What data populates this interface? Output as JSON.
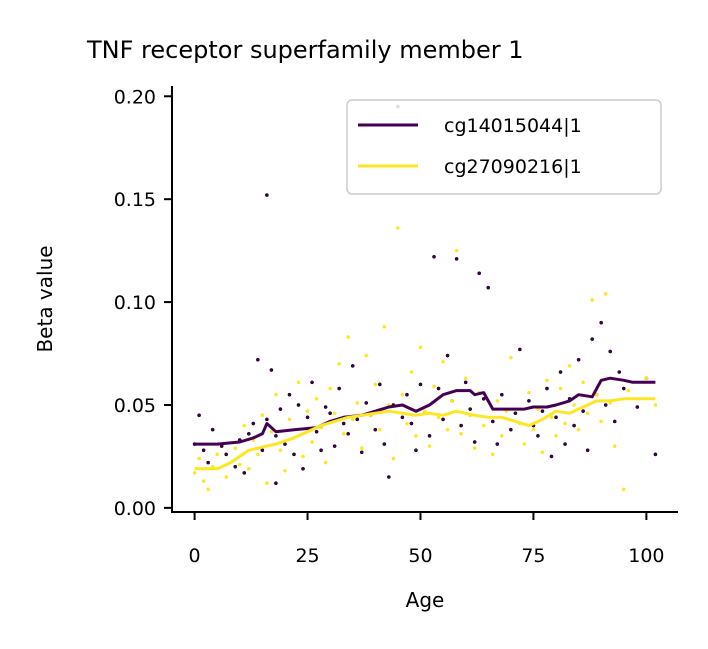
{
  "chart_data": {
    "type": "scatter",
    "title": "TNF receptor superfamily member 1",
    "xlabel": "Age",
    "ylabel": "Beta value",
    "xlim": [
      -5,
      107
    ],
    "ylim": [
      -0.002,
      0.205
    ],
    "xticks": [
      0,
      25,
      50,
      75,
      100
    ],
    "xtick_labels": [
      "0",
      "25",
      "50",
      "75",
      "100"
    ],
    "yticks": [
      0.0,
      0.05,
      0.1,
      0.15,
      0.2
    ],
    "ytick_labels": [
      "0.00",
      "0.05",
      "0.10",
      "0.15",
      "0.20"
    ],
    "grid": false,
    "legend_position": "top-right",
    "series": [
      {
        "name": "cg14015044|1",
        "color": "#440154",
        "trend": [
          [
            0,
            0.031
          ],
          [
            5,
            0.031
          ],
          [
            10,
            0.032
          ],
          [
            13,
            0.034
          ],
          [
            15,
            0.036
          ],
          [
            16,
            0.041
          ],
          [
            18,
            0.037
          ],
          [
            22,
            0.038
          ],
          [
            27,
            0.039
          ],
          [
            30,
            0.042
          ],
          [
            33,
            0.044
          ],
          [
            37,
            0.045
          ],
          [
            40,
            0.047
          ],
          [
            43,
            0.049
          ],
          [
            46,
            0.05
          ],
          [
            49,
            0.047
          ],
          [
            52,
            0.05
          ],
          [
            55,
            0.055
          ],
          [
            58,
            0.057
          ],
          [
            61,
            0.057
          ],
          [
            62,
            0.055
          ],
          [
            64,
            0.056
          ],
          [
            66,
            0.048
          ],
          [
            70,
            0.048
          ],
          [
            73,
            0.048
          ],
          [
            75,
            0.049
          ],
          [
            78,
            0.049
          ],
          [
            80,
            0.05
          ],
          [
            83,
            0.052
          ],
          [
            85,
            0.055
          ],
          [
            88,
            0.054
          ],
          [
            90,
            0.062
          ],
          [
            92,
            0.063
          ],
          [
            95,
            0.062
          ],
          [
            97,
            0.061
          ],
          [
            102,
            0.061
          ]
        ],
        "points": [
          [
            0,
            0.031
          ],
          [
            1,
            0.045
          ],
          [
            2,
            0.028
          ],
          [
            3,
            0.022
          ],
          [
            4,
            0.038
          ],
          [
            6,
            0.03
          ],
          [
            7,
            0.026
          ],
          [
            9,
            0.02
          ],
          [
            10,
            0.033
          ],
          [
            11,
            0.017
          ],
          [
            12,
            0.036
          ],
          [
            13,
            0.041
          ],
          [
            14,
            0.072
          ],
          [
            15,
            0.028
          ],
          [
            16,
            0.152
          ],
          [
            16,
            0.043
          ],
          [
            17,
            0.067
          ],
          [
            18,
            0.035
          ],
          [
            18,
            0.012
          ],
          [
            19,
            0.048
          ],
          [
            20,
            0.031
          ],
          [
            21,
            0.055
          ],
          [
            22,
            0.026
          ],
          [
            23,
            0.05
          ],
          [
            24,
            0.019
          ],
          [
            25,
            0.044
          ],
          [
            26,
            0.061
          ],
          [
            27,
            0.037
          ],
          [
            28,
            0.028
          ],
          [
            29,
            0.049
          ],
          [
            30,
            0.046
          ],
          [
            31,
            0.03
          ],
          [
            32,
            0.058
          ],
          [
            33,
            0.041
          ],
          [
            34,
            0.036
          ],
          [
            35,
            0.069
          ],
          [
            36,
            0.043
          ],
          [
            37,
            0.027
          ],
          [
            38,
            0.051
          ],
          [
            39,
            0.045
          ],
          [
            40,
            0.038
          ],
          [
            41,
            0.06
          ],
          [
            42,
            0.031
          ],
          [
            43,
            0.015
          ],
          [
            44,
            0.05
          ],
          [
            45,
            0.195
          ],
          [
            46,
            0.044
          ],
          [
            47,
            0.055
          ],
          [
            48,
            0.041
          ],
          [
            49,
            0.028
          ],
          [
            50,
            0.06
          ],
          [
            51,
            0.046
          ],
          [
            52,
            0.035
          ],
          [
            53,
            0.122
          ],
          [
            54,
            0.058
          ],
          [
            55,
            0.043
          ],
          [
            56,
            0.074
          ],
          [
            57,
            0.052
          ],
          [
            58,
            0.121
          ],
          [
            59,
            0.04
          ],
          [
            60,
            0.061
          ],
          [
            61,
            0.048
          ],
          [
            62,
            0.032
          ],
          [
            63,
            0.114
          ],
          [
            64,
            0.053
          ],
          [
            65,
            0.107
          ],
          [
            66,
            0.042
          ],
          [
            67,
            0.031
          ],
          [
            68,
            0.055
          ],
          [
            70,
            0.038
          ],
          [
            71,
            0.046
          ],
          [
            72,
            0.077
          ],
          [
            74,
            0.052
          ],
          [
            75,
            0.04
          ],
          [
            76,
            0.035
          ],
          [
            77,
            0.047
          ],
          [
            78,
            0.058
          ],
          [
            79,
            0.025
          ],
          [
            80,
            0.044
          ],
          [
            81,
            0.066
          ],
          [
            82,
            0.031
          ],
          [
            83,
            0.053
          ],
          [
            84,
            0.04
          ],
          [
            85,
            0.072
          ],
          [
            86,
            0.047
          ],
          [
            87,
            0.028
          ],
          [
            88,
            0.082
          ],
          [
            89,
            0.055
          ],
          [
            90,
            0.09
          ],
          [
            91,
            0.05
          ],
          [
            92,
            0.076
          ],
          [
            93,
            0.042
          ],
          [
            94,
            0.066
          ],
          [
            95,
            0.058
          ],
          [
            98,
            0.049
          ],
          [
            100,
            0.063
          ],
          [
            102,
            0.026
          ]
        ]
      },
      {
        "name": "cg27090216|1",
        "color": "#fde725",
        "trend": [
          [
            0,
            0.019
          ],
          [
            5,
            0.019
          ],
          [
            8,
            0.022
          ],
          [
            12,
            0.028
          ],
          [
            16,
            0.03
          ],
          [
            18,
            0.031
          ],
          [
            22,
            0.034
          ],
          [
            25,
            0.037
          ],
          [
            28,
            0.04
          ],
          [
            31,
            0.042
          ],
          [
            34,
            0.044
          ],
          [
            37,
            0.045
          ],
          [
            40,
            0.046
          ],
          [
            43,
            0.047
          ],
          [
            46,
            0.046
          ],
          [
            49,
            0.045
          ],
          [
            52,
            0.046
          ],
          [
            55,
            0.045
          ],
          [
            58,
            0.047
          ],
          [
            62,
            0.045
          ],
          [
            65,
            0.044
          ],
          [
            68,
            0.044
          ],
          [
            71,
            0.042
          ],
          [
            74,
            0.04
          ],
          [
            77,
            0.043
          ],
          [
            80,
            0.047
          ],
          [
            83,
            0.046
          ],
          [
            86,
            0.049
          ],
          [
            89,
            0.052
          ],
          [
            92,
            0.052
          ],
          [
            95,
            0.053
          ],
          [
            98,
            0.053
          ],
          [
            102,
            0.053
          ]
        ],
        "points": [
          [
            0,
            0.017
          ],
          [
            1,
            0.024
          ],
          [
            2,
            0.013
          ],
          [
            3,
            0.009
          ],
          [
            4,
            0.02
          ],
          [
            5,
            0.026
          ],
          [
            7,
            0.015
          ],
          [
            9,
            0.029
          ],
          [
            10,
            0.021
          ],
          [
            11,
            0.04
          ],
          [
            12,
            0.019
          ],
          [
            13,
            0.033
          ],
          [
            14,
            0.026
          ],
          [
            15,
            0.045
          ],
          [
            16,
            0.012
          ],
          [
            17,
            0.037
          ],
          [
            18,
            0.055
          ],
          [
            19,
            0.028
          ],
          [
            20,
            0.018
          ],
          [
            21,
            0.043
          ],
          [
            22,
            0.034
          ],
          [
            23,
            0.061
          ],
          [
            24,
            0.025
          ],
          [
            25,
            0.047
          ],
          [
            26,
            0.032
          ],
          [
            27,
            0.053
          ],
          [
            28,
            0.039
          ],
          [
            29,
            0.022
          ],
          [
            30,
            0.058
          ],
          [
            31,
            0.046
          ],
          [
            32,
            0.07
          ],
          [
            33,
            0.036
          ],
          [
            34,
            0.083
          ],
          [
            35,
            0.043
          ],
          [
            36,
            0.051
          ],
          [
            37,
            0.029
          ],
          [
            38,
            0.074
          ],
          [
            39,
            0.045
          ],
          [
            40,
            0.06
          ],
          [
            41,
            0.038
          ],
          [
            42,
            0.088
          ],
          [
            43,
            0.05
          ],
          [
            44,
            0.024
          ],
          [
            45,
            0.136
          ],
          [
            46,
            0.055
          ],
          [
            47,
            0.041
          ],
          [
            48,
            0.066
          ],
          [
            49,
            0.035
          ],
          [
            50,
            0.078
          ],
          [
            51,
            0.047
          ],
          [
            52,
            0.03
          ],
          [
            53,
            0.059
          ],
          [
            54,
            0.044
          ],
          [
            55,
            0.071
          ],
          [
            56,
            0.038
          ],
          [
            57,
            0.052
          ],
          [
            58,
            0.125
          ],
          [
            59,
            0.036
          ],
          [
            60,
            0.063
          ],
          [
            61,
            0.045
          ],
          [
            62,
            0.029
          ],
          [
            63,
            0.056
          ],
          [
            64,
            0.04
          ],
          [
            66,
            0.026
          ],
          [
            67,
            0.052
          ],
          [
            68,
            0.035
          ],
          [
            69,
            0.047
          ],
          [
            70,
            0.073
          ],
          [
            72,
            0.041
          ],
          [
            73,
            0.031
          ],
          [
            74,
            0.056
          ],
          [
            75,
            0.038
          ],
          [
            76,
            0.048
          ],
          [
            77,
            0.027
          ],
          [
            78,
            0.062
          ],
          [
            79,
            0.044
          ],
          [
            80,
            0.035
          ],
          [
            81,
            0.058
          ],
          [
            82,
            0.041
          ],
          [
            83,
            0.069
          ],
          [
            84,
            0.05
          ],
          [
            85,
            0.038
          ],
          [
            86,
            0.061
          ],
          [
            87,
            0.046
          ],
          [
            88,
            0.101
          ],
          [
            89,
            0.055
          ],
          [
            90,
            0.042
          ],
          [
            91,
            0.104
          ],
          [
            92,
            0.051
          ],
          [
            93,
            0.03
          ],
          [
            95,
            0.009
          ],
          [
            96,
            0.057
          ],
          [
            100,
            0.063
          ],
          [
            102,
            0.05
          ]
        ]
      }
    ]
  }
}
